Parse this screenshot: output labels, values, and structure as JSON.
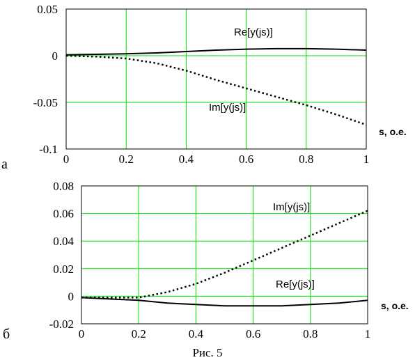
{
  "figure": {
    "caption": "Рис. 5"
  },
  "chart_data": [
    {
      "type": "line",
      "panel_label": "а",
      "xlabel": "s, о.е.",
      "xlim": [
        0,
        1
      ],
      "ylim": [
        -0.1,
        0.05
      ],
      "x_ticks": [
        0,
        0.2,
        0.4,
        0.6,
        0.8,
        1
      ],
      "x_tick_labels": [
        "0",
        "0.2",
        "0.4",
        "0.6",
        "0.8",
        "1"
      ],
      "y_ticks": [
        -0.1,
        -0.05,
        0,
        0.05
      ],
      "y_tick_labels": [
        "-0.1",
        "-0.05",
        "0",
        "0.05"
      ],
      "grid": true,
      "grid_color": "#00dd00",
      "series": [
        {
          "name": "Re[y(js)]",
          "style": "solid",
          "color": "#000000",
          "x": [
            0,
            0.1,
            0.2,
            0.3,
            0.4,
            0.5,
            0.6,
            0.7,
            0.8,
            0.9,
            1.0
          ],
          "y": [
            0.001,
            0.0015,
            0.002,
            0.003,
            0.0045,
            0.006,
            0.007,
            0.0075,
            0.0075,
            0.007,
            0.006
          ]
        },
        {
          "name": "Im[y(js)]",
          "style": "dotted",
          "color": "#000000",
          "x": [
            0,
            0.1,
            0.2,
            0.3,
            0.4,
            0.5,
            0.6,
            0.7,
            0.8,
            0.9,
            1.0
          ],
          "y": [
            0,
            -0.001,
            -0.003,
            -0.008,
            -0.016,
            -0.026,
            -0.035,
            -0.044,
            -0.053,
            -0.063,
            -0.074
          ]
        }
      ]
    },
    {
      "type": "line",
      "panel_label": "б",
      "xlabel": "s, о.е.",
      "xlim": [
        0,
        1
      ],
      "ylim": [
        -0.02,
        0.08
      ],
      "x_ticks": [
        0,
        0.2,
        0.4,
        0.6,
        0.8,
        1
      ],
      "x_tick_labels": [
        "0",
        "0.2",
        "0.4",
        "0.6",
        "0.8",
        "1"
      ],
      "y_ticks": [
        -0.02,
        0,
        0.02,
        0.04,
        0.06,
        0.08
      ],
      "y_tick_labels": [
        "-0.02",
        "0",
        "0.02",
        "0.04",
        "0.06",
        "0.08"
      ],
      "grid": true,
      "grid_color": "#00dd00",
      "series": [
        {
          "name": "Im[y(js)]",
          "style": "dotted",
          "color": "#000000",
          "x": [
            0,
            0.1,
            0.2,
            0.3,
            0.4,
            0.5,
            0.6,
            0.7,
            0.8,
            0.9,
            1.0
          ],
          "y": [
            -0.001,
            -0.001,
            -0.001,
            0.003,
            0.009,
            0.017,
            0.026,
            0.035,
            0.044,
            0.053,
            0.062
          ]
        },
        {
          "name": "Re[y(js)]",
          "style": "solid",
          "color": "#000000",
          "x": [
            0,
            0.1,
            0.2,
            0.3,
            0.4,
            0.5,
            0.6,
            0.7,
            0.8,
            0.9,
            1.0
          ],
          "y": [
            -0.001,
            -0.002,
            -0.003,
            -0.005,
            -0.006,
            -0.007,
            -0.007,
            -0.007,
            -0.006,
            -0.005,
            -0.003
          ]
        }
      ]
    }
  ]
}
